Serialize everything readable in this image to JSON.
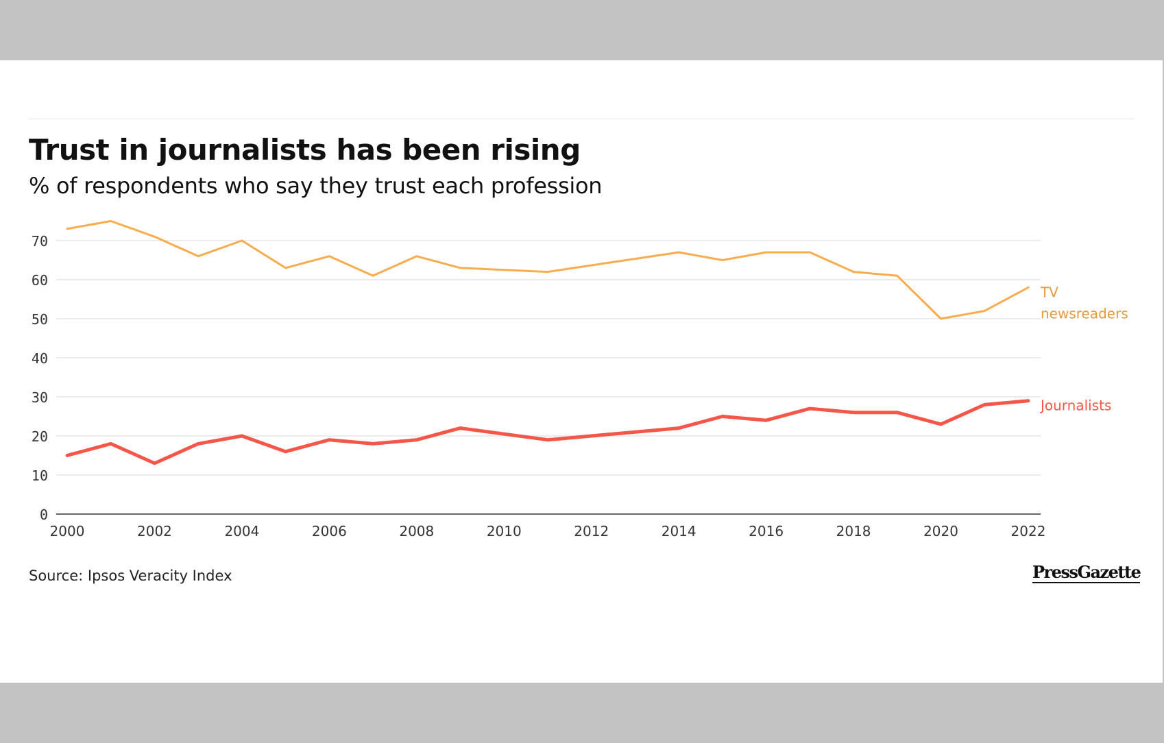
{
  "chart_data": {
    "type": "line",
    "title": "Trust in journalists has been rising",
    "subtitle": "% of respondents who say they trust each profession",
    "xlabel": "",
    "ylabel": "",
    "x": [
      2000,
      2001,
      2002,
      2003,
      2004,
      2005,
      2006,
      2007,
      2008,
      2009,
      2011,
      2014,
      2015,
      2016,
      2017,
      2018,
      2019,
      2020,
      2021,
      2022
    ],
    "xticks": [
      "2000",
      "2002",
      "2004",
      "2006",
      "2008",
      "2010",
      "2012",
      "2014",
      "2016",
      "2018",
      "2020",
      "2022"
    ],
    "yticks": [
      "0",
      "10",
      "20",
      "30",
      "40",
      "50",
      "60",
      "70"
    ],
    "ylim": [
      0,
      75
    ],
    "xlim": [
      2000,
      2022
    ],
    "grid": true,
    "series": [
      {
        "name": "TV newsreaders",
        "label_lines": [
          "TV",
          "newsreaders"
        ],
        "color": "#f9ac4e",
        "values": [
          73,
          75,
          71,
          66,
          70,
          63,
          66,
          61,
          66,
          63,
          62,
          67,
          65,
          67,
          67,
          62,
          61,
          50,
          52,
          58
        ]
      },
      {
        "name": "Journalists",
        "label_lines": [
          "Journalists"
        ],
        "color": "#f5564a",
        "values": [
          15,
          18,
          13,
          18,
          20,
          16,
          19,
          18,
          19,
          22,
          19,
          22,
          25,
          24,
          27,
          26,
          26,
          23,
          28,
          29
        ]
      }
    ]
  },
  "source": "Source: Ipsos Veracity Index",
  "logo": "PressGazette",
  "colors": {
    "grid": "#e6e6e6",
    "axis": "#333333",
    "frame": "#c3c3c3",
    "panel": "#ffffff"
  }
}
